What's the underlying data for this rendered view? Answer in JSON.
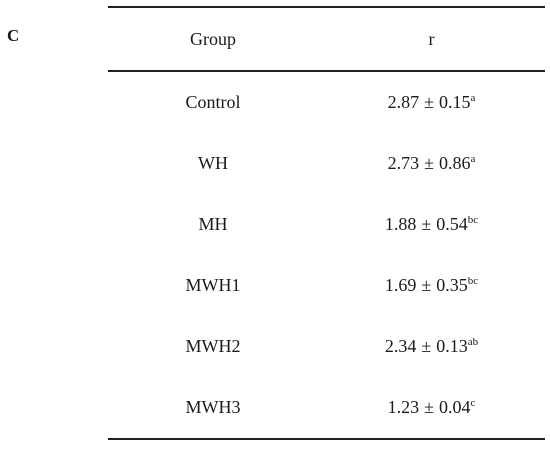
{
  "panel_label": "C",
  "table": {
    "headers": [
      "Group",
      "r"
    ],
    "rows": [
      {
        "group": "Control",
        "mean": "2.87",
        "pm": "±",
        "sd": "0.15",
        "sig": "a"
      },
      {
        "group": "WH",
        "mean": "2.73",
        "pm": "±",
        "sd": "0.86",
        "sig": "a"
      },
      {
        "group": "MH",
        "mean": "1.88",
        "pm": "±",
        "sd": "0.54",
        "sig": "bc"
      },
      {
        "group": "MWH1",
        "mean": "1.69",
        "pm": "±",
        "sd": "0.35",
        "sig": "bc"
      },
      {
        "group": "MWH2",
        "mean": "2.34",
        "pm": "±",
        "sd": "0.13",
        "sig": "ab"
      },
      {
        "group": "MWH3",
        "mean": "1.23",
        "pm": "±",
        "sd": "0.04",
        "sig": "c"
      }
    ]
  }
}
